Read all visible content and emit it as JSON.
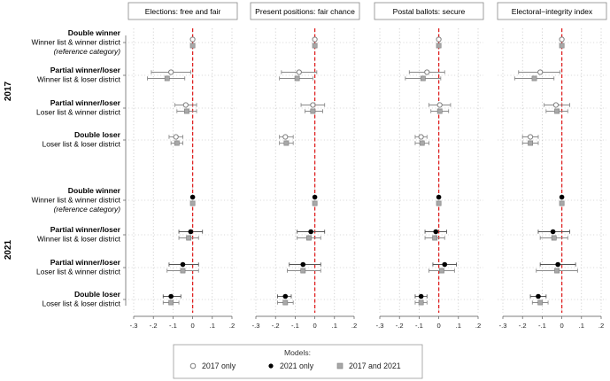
{
  "chart_data": {
    "type": "scatter",
    "subtype": "coefficient-plot",
    "panels": [
      {
        "title": "Elections: free and fair"
      },
      {
        "title": "Present positions: fair chance"
      },
      {
        "title": "Postal ballots: secure"
      },
      {
        "title": "Electoral−integrity index"
      }
    ],
    "xlim": [
      -0.3,
      0.2
    ],
    "x_ticks": [
      -0.3,
      -0.2,
      -0.1,
      0.0,
      0.1,
      0.2
    ],
    "x_tick_labels": [
      "-.3",
      "-.2",
      "-.1",
      "0",
      ".1",
      ".2"
    ],
    "reference_line": {
      "x": 0,
      "color": "#e02020",
      "style": "dashed"
    },
    "grid": true,
    "years": [
      {
        "label": "2017",
        "categories": [
          0,
          1,
          2,
          3
        ]
      },
      {
        "label": "2021",
        "categories": [
          4,
          5,
          6,
          7
        ]
      }
    ],
    "categories": [
      {
        "bold": "Double winner",
        "line2": "Winner list & winner district",
        "line3": "(reference category)"
      },
      {
        "bold": "Partial winner/loser",
        "line2": "Winner list & loser district",
        "line3": ""
      },
      {
        "bold": "Partial winner/loser",
        "line2": "Loser list & winner district",
        "line3": ""
      },
      {
        "bold": "Double loser",
        "line2": "Loser list & loser district",
        "line3": ""
      },
      {
        "bold": "Double winner",
        "line2": "Winner list & winner district",
        "line3": "(reference category)"
      },
      {
        "bold": "Partial winner/loser",
        "line2": "Winner list & loser district",
        "line3": ""
      },
      {
        "bold": "Partial winner/loser",
        "line2": "Loser list & winner district",
        "line3": ""
      },
      {
        "bold": "Double loser",
        "line2": "Loser list & loser district",
        "line3": ""
      }
    ],
    "series": [
      {
        "name": "2017 only",
        "marker": "hollow-circle",
        "color": "#808080",
        "values": [
          [
            [
              0,
              0,
              0
            ],
            [
              -0.11,
              -0.21,
              -0.01
            ],
            [
              -0.035,
              -0.09,
              0.02
            ],
            [
              -0.085,
              -0.12,
              -0.05
            ]
          ],
          [
            [
              0,
              0,
              0
            ],
            [
              -0.08,
              -0.17,
              0.01
            ],
            [
              -0.01,
              -0.07,
              0.05
            ],
            [
              -0.15,
              -0.18,
              -0.11
            ]
          ],
          [
            [
              0,
              0,
              0
            ],
            [
              -0.06,
              -0.15,
              0.03
            ],
            [
              0.005,
              -0.05,
              0.06
            ],
            [
              -0.09,
              -0.12,
              -0.06
            ]
          ],
          [
            [
              0,
              0,
              0
            ],
            [
              -0.11,
              -0.22,
              -0.01
            ],
            [
              -0.03,
              -0.09,
              0.04
            ],
            [
              -0.16,
              -0.2,
              -0.12
            ]
          ]
        ]
      },
      {
        "name": "2021 only",
        "marker": "filled-circle",
        "color": "#000000",
        "values": [
          [
            [
              0,
              0,
              0
            ],
            [
              -0.01,
              -0.07,
              0.05
            ],
            [
              -0.05,
              -0.12,
              0.03
            ],
            [
              -0.11,
              -0.15,
              -0.06
            ]
          ],
          [
            [
              0,
              0,
              0
            ],
            [
              -0.02,
              -0.09,
              0.05
            ],
            [
              -0.06,
              -0.13,
              0.03
            ],
            [
              -0.15,
              -0.19,
              -0.12
            ]
          ],
          [
            [
              0,
              0,
              0
            ],
            [
              -0.015,
              -0.07,
              0.04
            ],
            [
              0.03,
              -0.03,
              0.09
            ],
            [
              -0.09,
              -0.12,
              -0.06
            ]
          ],
          [
            [
              0,
              0,
              0
            ],
            [
              -0.045,
              -0.12,
              0.04
            ],
            [
              -0.02,
              -0.11,
              0.07
            ],
            [
              -0.12,
              -0.16,
              -0.08
            ]
          ]
        ]
      },
      {
        "name": "2017 and 2021",
        "marker": "filled-square",
        "color": "#a8a8a8",
        "values": [
          [
            [
              0,
              0,
              0
            ],
            [
              -0.13,
              -0.23,
              -0.04
            ],
            [
              -0.03,
              -0.08,
              0.02
            ],
            [
              -0.08,
              -0.11,
              -0.05
            ],
            [
              0,
              0,
              0
            ],
            [
              -0.02,
              -0.07,
              0.03
            ],
            [
              -0.05,
              -0.13,
              0.03
            ],
            [
              -0.11,
              -0.15,
              -0.07
            ]
          ],
          [
            [
              0,
              0,
              0
            ],
            [
              -0.09,
              -0.18,
              -0.01
            ],
            [
              -0.01,
              -0.05,
              0.04
            ],
            [
              -0.145,
              -0.18,
              -0.11
            ],
            [
              0,
              0,
              0
            ],
            [
              -0.03,
              -0.09,
              0.03
            ],
            [
              -0.06,
              -0.14,
              0.03
            ],
            [
              -0.15,
              -0.19,
              -0.11
            ]
          ],
          [
            [
              0,
              0,
              0
            ],
            [
              -0.08,
              -0.17,
              0.01
            ],
            [
              0.005,
              -0.04,
              0.05
            ],
            [
              -0.085,
              -0.12,
              -0.05
            ],
            [
              0,
              0,
              0
            ],
            [
              -0.02,
              -0.07,
              0.03
            ],
            [
              0.015,
              -0.05,
              0.08
            ],
            [
              -0.09,
              -0.12,
              -0.06
            ]
          ],
          [
            [
              0,
              0,
              0
            ],
            [
              -0.14,
              -0.24,
              -0.04
            ],
            [
              -0.025,
              -0.08,
              0.03
            ],
            [
              -0.16,
              -0.2,
              -0.12
            ],
            [
              0,
              0,
              0
            ],
            [
              -0.04,
              -0.11,
              0.03
            ],
            [
              -0.025,
              -0.13,
              0.08
            ],
            [
              -0.11,
              -0.15,
              -0.07
            ]
          ]
        ]
      }
    ],
    "series_rows": {
      "2017 only": [
        0,
        1,
        2,
        3
      ],
      "2021 only": [
        4,
        5,
        6,
        7
      ],
      "2017 and 2021": [
        0,
        1,
        2,
        3,
        4,
        5,
        6,
        7
      ]
    },
    "legend": {
      "title": "Models:",
      "position": "bottom-center"
    }
  }
}
